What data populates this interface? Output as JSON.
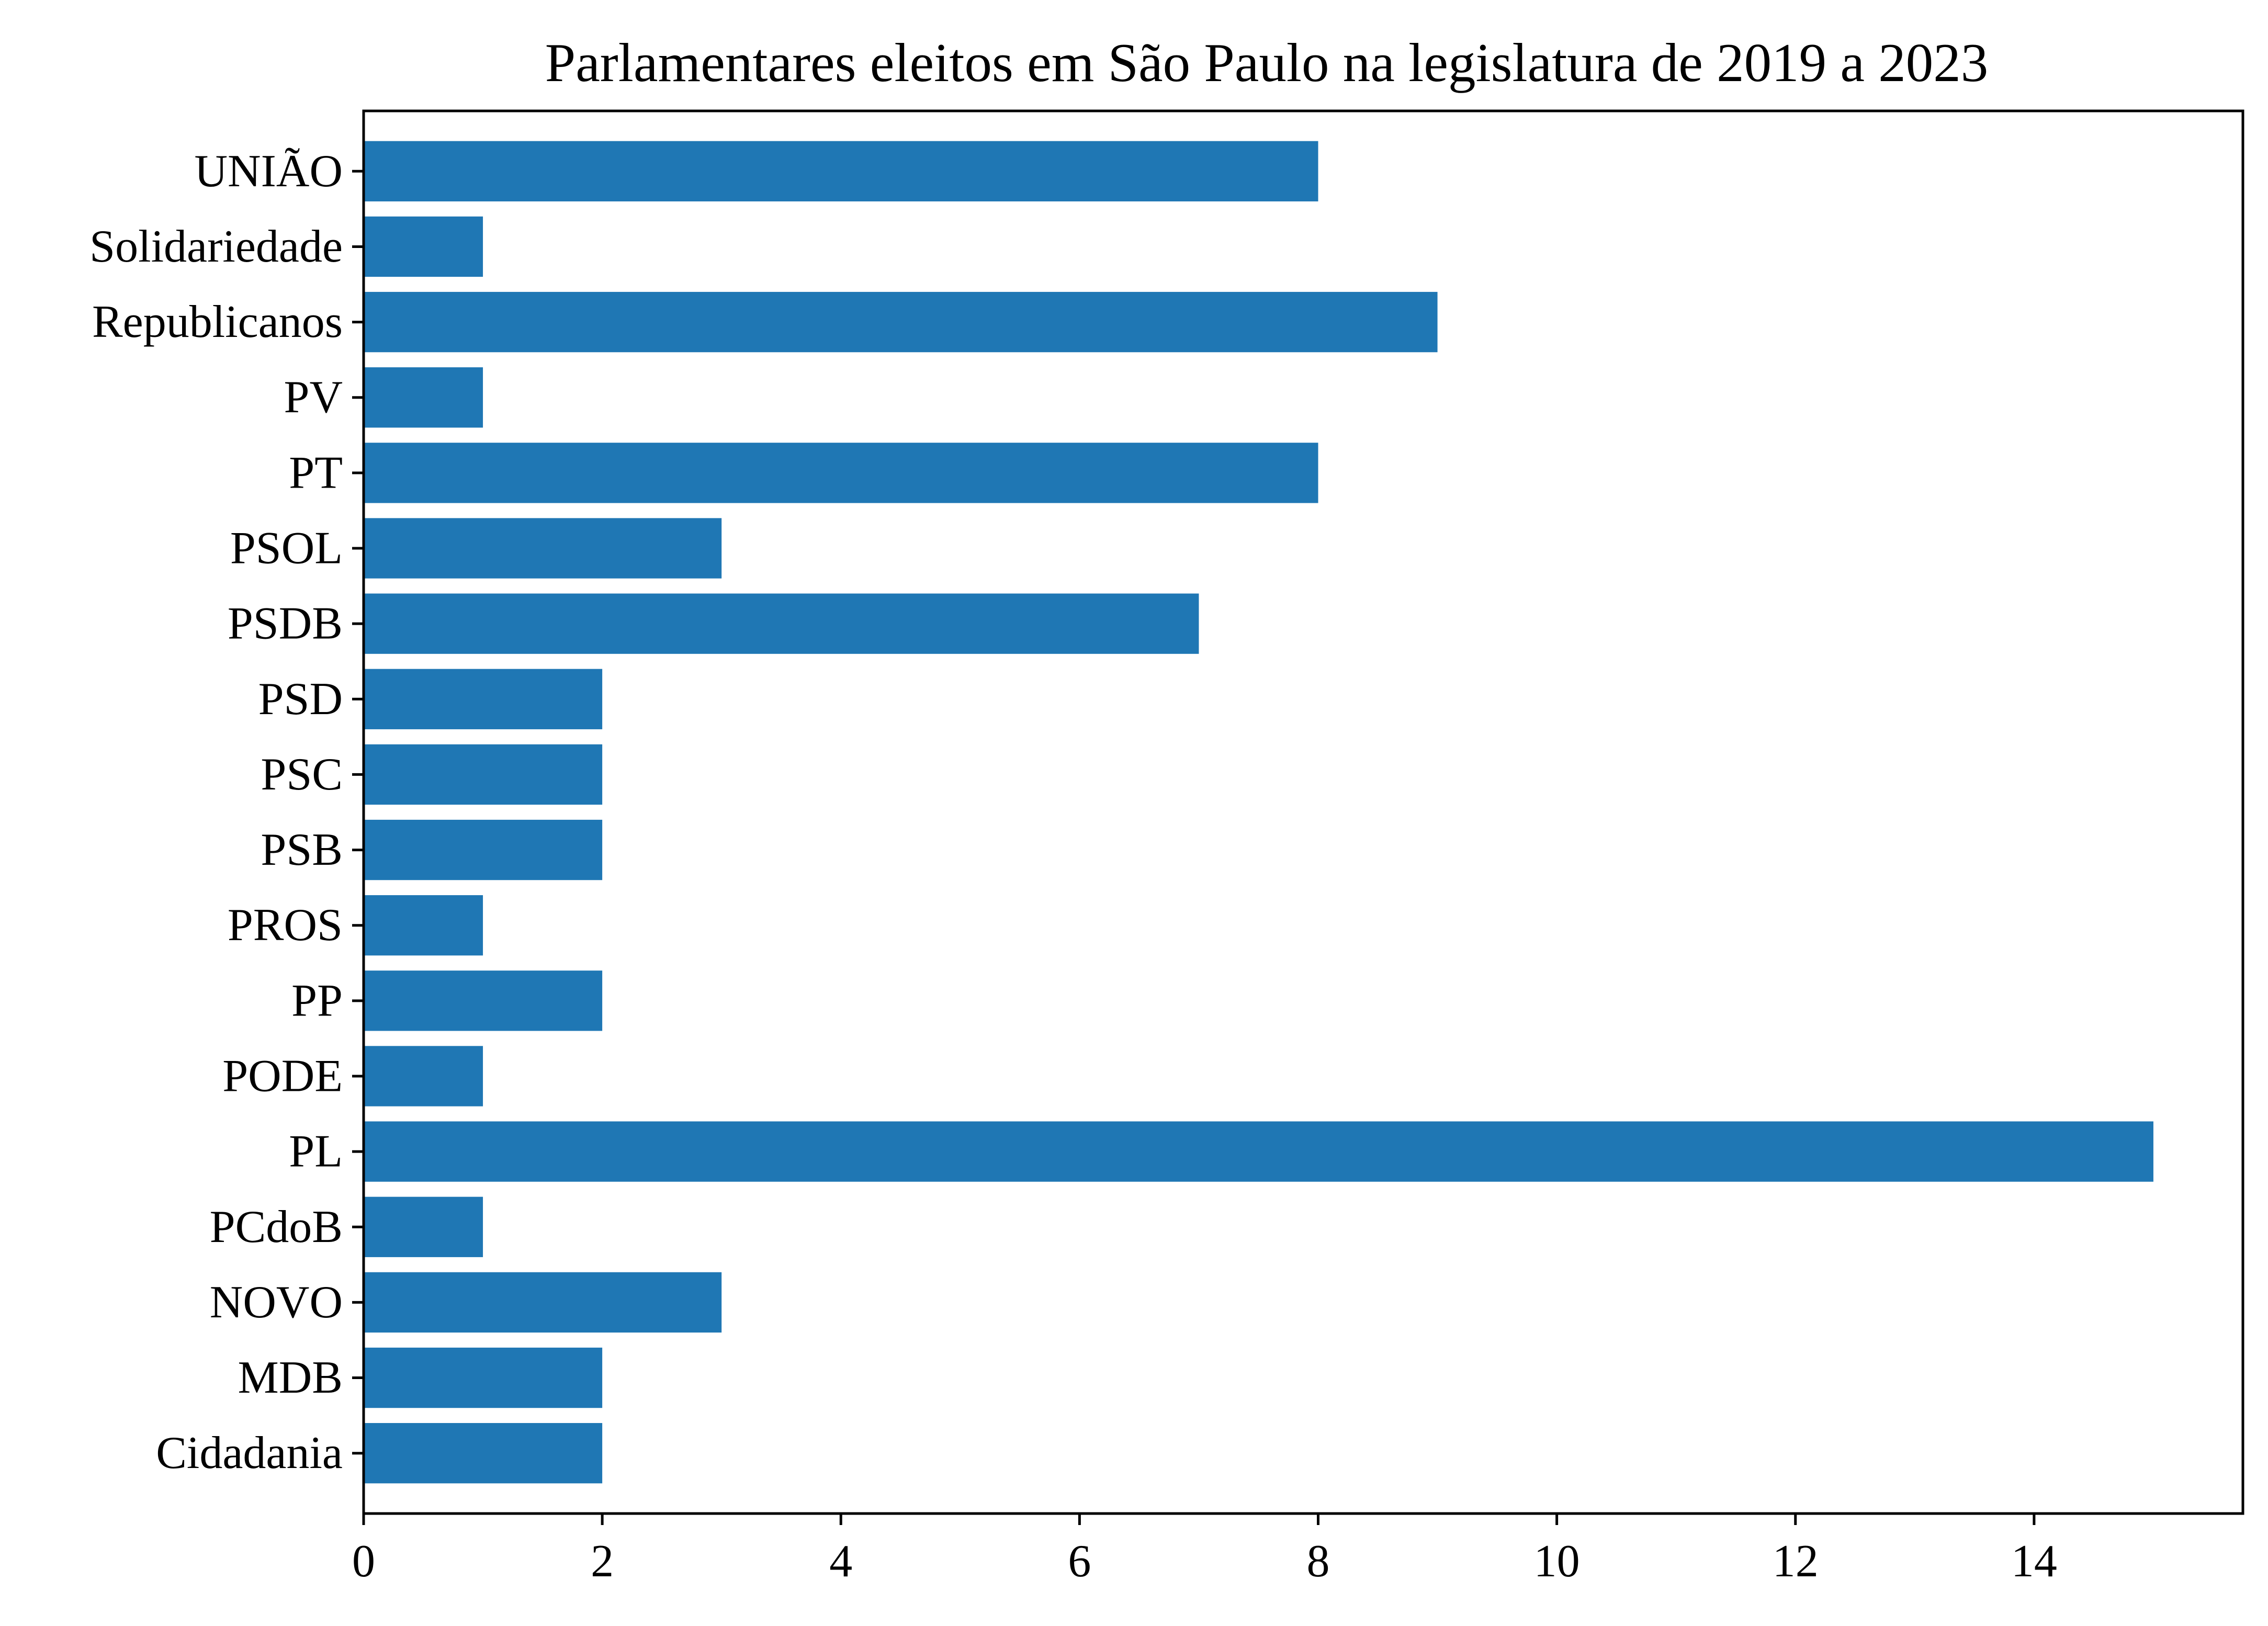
{
  "chart_data": {
    "type": "bar",
    "orientation": "horizontal",
    "title": "Parlamentares eleitos em São Paulo na legislatura de 2019 a 2023",
    "xlabel": "",
    "ylabel": "",
    "categories": [
      "Cidadania",
      "MDB",
      "NOVO",
      "PCdoB",
      "PL",
      "PODE",
      "PP",
      "PROS",
      "PSB",
      "PSC",
      "PSD",
      "PSDB",
      "PSOL",
      "PT",
      "PV",
      "Republicanos",
      "Solidariedade",
      "UNIÃO"
    ],
    "values": [
      2,
      2,
      3,
      1,
      15,
      1,
      2,
      1,
      2,
      2,
      2,
      7,
      3,
      8,
      1,
      9,
      1,
      8
    ],
    "xlim": [
      0,
      15.75
    ],
    "xticks": [
      0,
      2,
      4,
      6,
      8,
      10,
      12,
      14
    ],
    "bar_color": "#1f77b4",
    "grid": false,
    "legend": "none"
  }
}
